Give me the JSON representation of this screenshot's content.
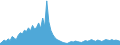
{
  "chart_data": {
    "type": "area",
    "categories": [
      null,
      null,
      null,
      null,
      null,
      null,
      null,
      null,
      null,
      null,
      null,
      null,
      null,
      null,
      null,
      null,
      null,
      null,
      null,
      null,
      null,
      null,
      null,
      null,
      null,
      null,
      null,
      null,
      null,
      null,
      null,
      null,
      null,
      null,
      null,
      null,
      null,
      null,
      null,
      null,
      null,
      null,
      null,
      null,
      null,
      null,
      null,
      null,
      null,
      null,
      null,
      null,
      null,
      null,
      null,
      null,
      null,
      null,
      null,
      null
    ],
    "values": [
      5,
      12,
      20,
      15,
      25,
      18,
      35,
      28,
      22,
      40,
      50,
      45,
      60,
      55,
      70,
      58,
      80,
      65,
      72,
      90,
      68,
      110,
      75,
      180,
      95,
      60,
      42,
      30,
      22,
      18,
      14,
      10,
      8,
      6,
      10,
      14,
      12,
      16,
      14,
      12,
      10,
      14,
      18,
      15,
      18,
      22,
      18,
      15,
      20,
      18,
      14,
      18,
      22,
      20,
      18,
      22,
      18,
      20,
      18,
      15
    ],
    "color": "#4fa8d8",
    "ylim": [
      0,
      183.6
    ],
    "tick_labels": false,
    "grid": false
  }
}
